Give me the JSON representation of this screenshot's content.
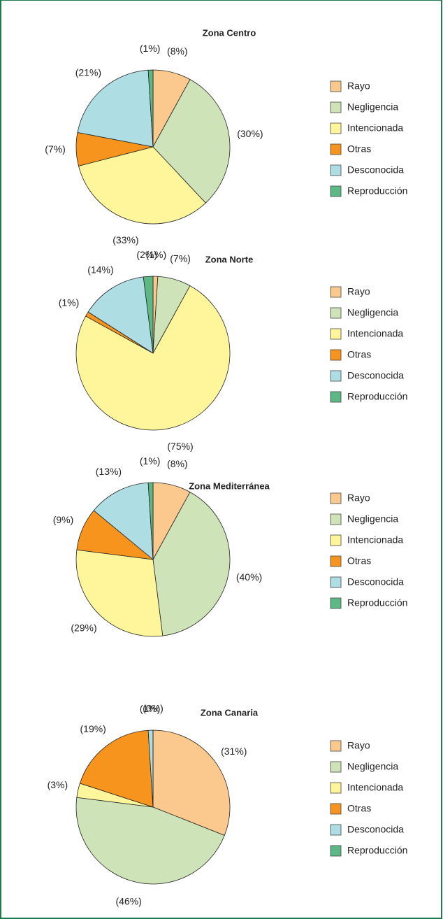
{
  "chart_data": [
    {
      "type": "pie",
      "title": "Zona Centro",
      "categories": [
        "Rayo",
        "Negligencia",
        "Intencionada",
        "Otras",
        "Desconocida",
        "Reproducción"
      ],
      "values": [
        8,
        30,
        33,
        7,
        21,
        1
      ],
      "value_labels": [
        "(8%)",
        "(30%)",
        "(33%)",
        "(7%)",
        "(21%)",
        "(1%)"
      ],
      "colors": [
        "#fbc98e",
        "#cfe3b9",
        "#fff59b",
        "#f7941d",
        "#aedde4",
        "#5cb885"
      ]
    },
    {
      "type": "pie",
      "title": "Zona Norte",
      "categories": [
        "Rayo",
        "Negligencia",
        "Intencionada",
        "Otras",
        "Desconocida",
        "Reproducción"
      ],
      "values": [
        1,
        7,
        75,
        1,
        14,
        2
      ],
      "value_labels": [
        "(1%)",
        "(7%)",
        "(75%)",
        "(1%)",
        "(14%)",
        "(2%)"
      ],
      "colors": [
        "#fbc98e",
        "#cfe3b9",
        "#fff59b",
        "#f7941d",
        "#aedde4",
        "#5cb885"
      ]
    },
    {
      "type": "pie",
      "title": "Zona Mediterránea",
      "categories": [
        "Rayo",
        "Negligencia",
        "Intencionada",
        "Otras",
        "Desconocida",
        "Reproducción"
      ],
      "values": [
        8,
        40,
        29,
        9,
        13,
        1
      ],
      "value_labels": [
        "(8%)",
        "(40%)",
        "(29%)",
        "(9%)",
        "(13%)",
        "(1%)"
      ],
      "colors": [
        "#fbc98e",
        "#cfe3b9",
        "#fff59b",
        "#f7941d",
        "#aedde4",
        "#5cb885"
      ]
    },
    {
      "type": "pie",
      "title": "Zona Canaria",
      "categories": [
        "Rayo",
        "Negligencia",
        "Intencionada",
        "Otras",
        "Desconocida",
        "Reproducción"
      ],
      "values": [
        31,
        46,
        3,
        19,
        1,
        0
      ],
      "value_labels": [
        "(31%)",
        "(46%)",
        "(3%)",
        "(19%)",
        "(1%)",
        "(0%)"
      ],
      "colors": [
        "#fbc98e",
        "#cfe3b9",
        "#fff59b",
        "#f7941d",
        "#aedde4",
        "#5cb885"
      ]
    }
  ]
}
